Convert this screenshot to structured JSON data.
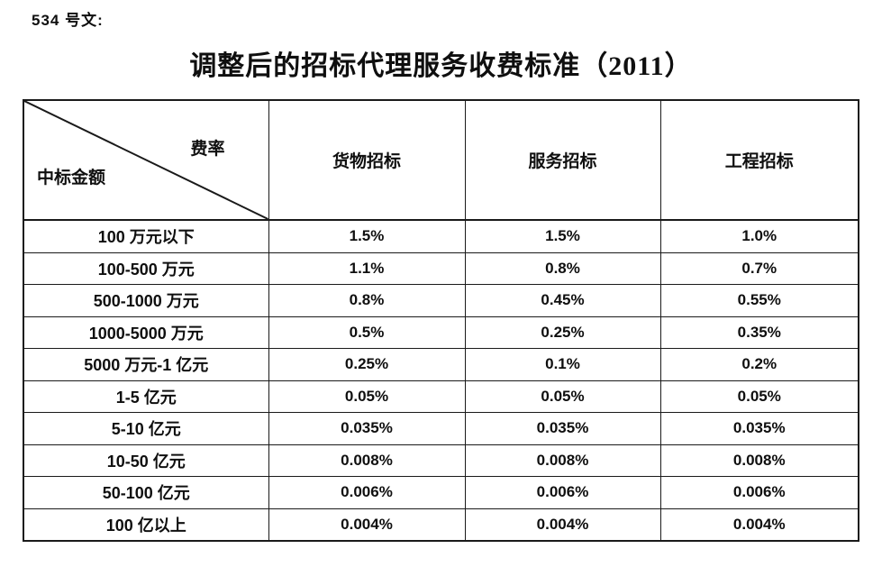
{
  "document": {
    "doc_number": "534 号文:",
    "title": "调整后的招标代理服务收费标准（2011）"
  },
  "table": {
    "corner": {
      "top_label": "费率",
      "bottom_label": "中标金额"
    },
    "columns": [
      "货物招标",
      "服务招标",
      "工程招标"
    ],
    "rows": [
      {
        "amount": "100 万元以下",
        "values": [
          "1.5%",
          "1.5%",
          "1.0%"
        ]
      },
      {
        "amount": "100-500 万元",
        "values": [
          "1.1%",
          "0.8%",
          "0.7%"
        ]
      },
      {
        "amount": "500-1000 万元",
        "values": [
          "0.8%",
          "0.45%",
          "0.55%"
        ]
      },
      {
        "amount": "1000-5000 万元",
        "values": [
          "0.5%",
          "0.25%",
          "0.35%"
        ]
      },
      {
        "amount": "5000 万元-1 亿元",
        "values": [
          "0.25%",
          "0.1%",
          "0.2%"
        ]
      },
      {
        "amount": "1-5 亿元",
        "values": [
          "0.05%",
          "0.05%",
          "0.05%"
        ]
      },
      {
        "amount": "5-10 亿元",
        "values": [
          "0.035%",
          "0.035%",
          "0.035%"
        ]
      },
      {
        "amount": "10-50 亿元",
        "values": [
          "0.008%",
          "0.008%",
          "0.008%"
        ]
      },
      {
        "amount": "50-100 亿元",
        "values": [
          "0.006%",
          "0.006%",
          "0.006%"
        ]
      },
      {
        "amount": "100 亿以上",
        "values": [
          "0.004%",
          "0.004%",
          "0.004%"
        ]
      }
    ],
    "colors": {
      "border": "#1a1a1a",
      "text": "#0f0f0f",
      "background": "#ffffff"
    }
  }
}
